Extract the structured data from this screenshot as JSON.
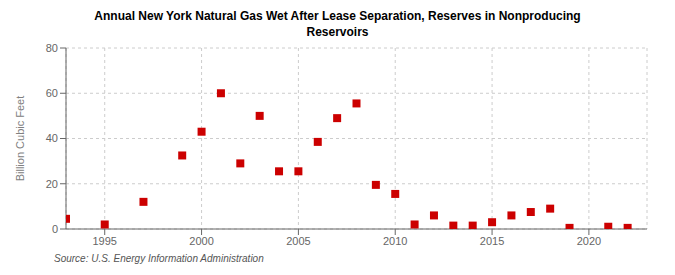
{
  "chart_data": {
    "type": "scatter",
    "title": "Annual New York Natural Gas Wet After Lease Separation, Reserves in Nonproducing\nReservoirs",
    "ylabel": "Billion Cubic Feet",
    "annotations": [
      "Source: U.S. Energy Information Administration"
    ],
    "x": [
      1993,
      1995,
      1997,
      1999,
      2000,
      2001,
      2002,
      2003,
      2004,
      2005,
      2006,
      2007,
      2008,
      2009,
      2010,
      2011,
      2012,
      2013,
      2014,
      2015,
      2016,
      2017,
      2018,
      2019,
      2021,
      2022
    ],
    "values": [
      4.5,
      2.0,
      12.0,
      32.5,
      43.0,
      60.0,
      29.0,
      50.0,
      25.5,
      25.5,
      38.5,
      49.0,
      55.5,
      19.5,
      15.5,
      2.0,
      6.0,
      1.5,
      1.5,
      3.0,
      6.0,
      7.5,
      9.0,
      0.5,
      1.0,
      0.5
    ],
    "color": "#cc0000",
    "marker": "square",
    "xlim": [
      1993,
      2023
    ],
    "ylim": [
      0,
      80
    ],
    "xticks": [
      1995,
      2000,
      2005,
      2010,
      2015,
      2020
    ],
    "yticks": [
      0,
      20,
      40,
      60,
      80
    ],
    "grid": true
  }
}
